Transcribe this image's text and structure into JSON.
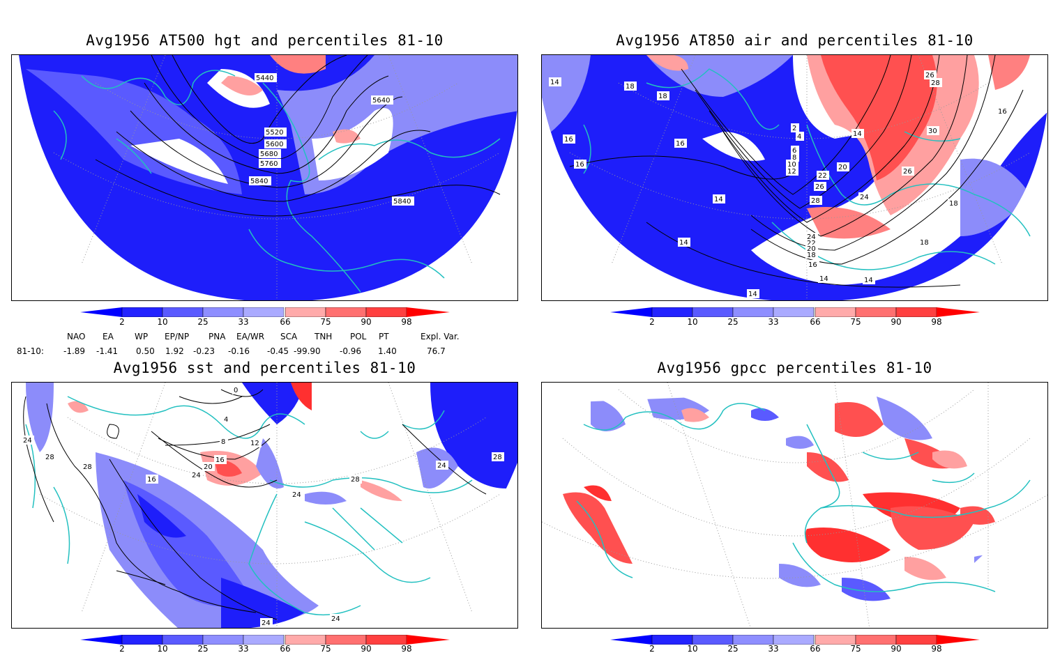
{
  "panels": [
    {
      "title": "Avg1956 AT500 hgt and percentiles 81-10",
      "contour_labels": [
        "5440",
        "5640",
        "5520",
        "5600",
        "5680",
        "5760",
        "5840",
        "5840"
      ]
    },
    {
      "title": "Avg1956 AT850 air and percentiles 81-10",
      "contour_labels": [
        "14",
        "18",
        "18",
        "16",
        "16",
        "16",
        "14",
        "14",
        "14",
        "14",
        "14",
        "2",
        "4",
        "6",
        "8",
        "10",
        "12",
        "14",
        "20",
        "22",
        "24",
        "26",
        "28",
        "30",
        "26",
        "24",
        "22",
        "20",
        "18",
        "16",
        "18",
        "18",
        "26",
        "28",
        "16"
      ]
    },
    {
      "title": "Avg1956 sst and percentiles 81-10",
      "contour_labels": [
        "28",
        "28",
        "24",
        "24",
        "16",
        "20",
        "8",
        "12",
        "16",
        "4",
        "0",
        "24",
        "28",
        "24",
        "28",
        "24",
        "24"
      ]
    },
    {
      "title": "Avg1956 gpcc percentiles 81-10",
      "contour_labels": []
    }
  ],
  "colorbar": {
    "labels": [
      "2",
      "10",
      "25",
      "33",
      "66",
      "75",
      "90",
      "98"
    ],
    "colors": [
      "#0000ff",
      "#2323ff",
      "#5a5aff",
      "#8e8eff",
      "#aaaaff",
      "#ffffff",
      "#ffaaaa",
      "#ff7070",
      "#ff4040",
      "#ff0000",
      "#ff0000"
    ]
  },
  "indices": {
    "header": [
      "NAO",
      "EA",
      "WP",
      "EP/NP",
      "PNA",
      "EA/WR",
      "SCA",
      "TNH",
      "POL",
      "PT",
      "Expl. Var."
    ],
    "row_label": "81-10:",
    "values": [
      "-1.89",
      "-1.41",
      "0.50",
      "1.92",
      "-0.23",
      "-0.16",
      "-0.45",
      "-99.90",
      "-0.96",
      "1.40",
      "76.7"
    ]
  },
  "colors": {
    "blue": "#1e1efa",
    "lightblue": "#8c8cfa",
    "red": "#ff3030",
    "lightred": "#ffa0a0",
    "coast": "#22c0c0"
  }
}
